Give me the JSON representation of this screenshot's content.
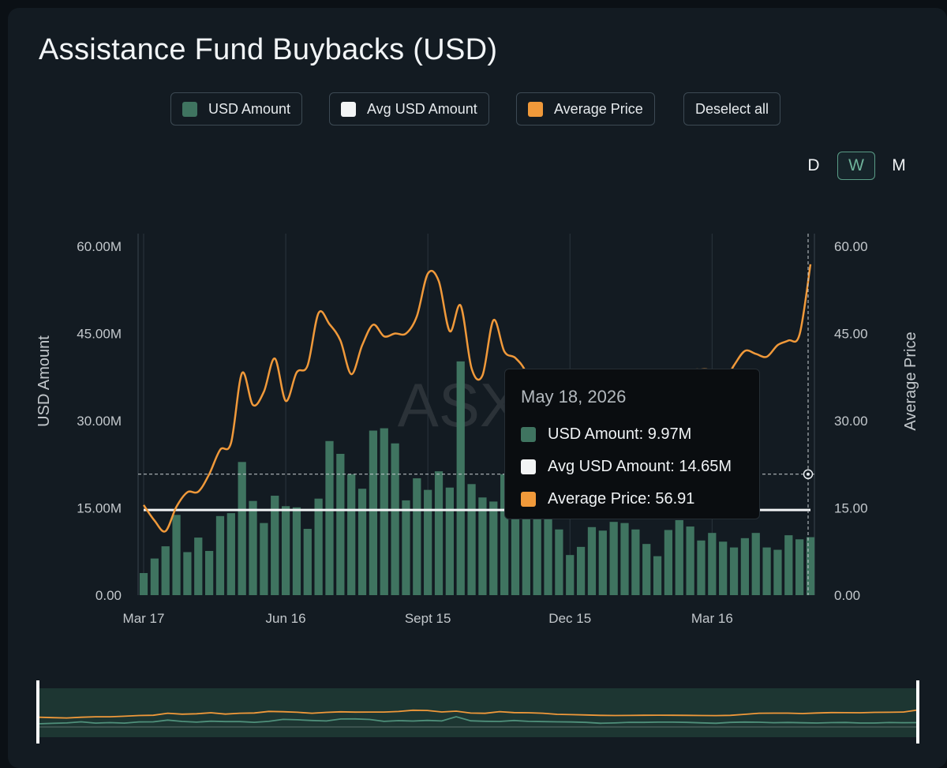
{
  "title": "Assistance Fund Buybacks (USD)",
  "legend": [
    {
      "label": "USD Amount",
      "color": "#3f7460"
    },
    {
      "label": "Avg USD Amount",
      "color": "#f2f4f5"
    },
    {
      "label": "Average Price",
      "color": "#f0993a"
    }
  ],
  "deselect_label": "Deselect all",
  "timeframes": [
    {
      "label": "D",
      "active": false
    },
    {
      "label": "W",
      "active": true
    },
    {
      "label": "M",
      "active": false
    }
  ],
  "watermark": "ASXN",
  "tooltip": {
    "date": "May 18, 2026",
    "rows": [
      {
        "label": "USD Amount: 9.97M",
        "color": "#3f7460"
      },
      {
        "label": "Avg USD Amount: 14.65M",
        "color": "#f2f4f5"
      },
      {
        "label": "Average Price: 56.91",
        "color": "#f0993a"
      }
    ]
  },
  "chart_data": {
    "type": "bar",
    "title": "Assistance Fund Buybacks (USD)",
    "ylabel": "USD Amount",
    "y2label": "Average Price",
    "ylim": [
      0,
      60
    ],
    "y2lim": [
      0,
      60
    ],
    "yticks": [
      "0.00",
      "15.00M",
      "30.00M",
      "45.00M",
      "60.00M"
    ],
    "y2ticks": [
      "0.00",
      "15.00",
      "30.00",
      "45.00",
      "60.00"
    ],
    "xticks": [
      {
        "label": "Mar 17",
        "index": 0
      },
      {
        "label": "Jun 16",
        "index": 13
      },
      {
        "label": "Sept 15",
        "index": 26
      },
      {
        "label": "Dec 15",
        "index": 39
      },
      {
        "label": "Mar 16",
        "index": 52
      }
    ],
    "avg_usd_amount": 14.65,
    "crosshair_price": 20.8,
    "series": [
      {
        "name": "USD Amount",
        "kind": "bar",
        "color": "#3f7460",
        "values": [
          3.8,
          6.3,
          8.4,
          13.8,
          7.4,
          9.9,
          7.6,
          13.6,
          14.1,
          22.9,
          16.2,
          12.4,
          17.1,
          15.3,
          15.1,
          11.4,
          16.6,
          26.5,
          24.3,
          20.8,
          18.3,
          28.3,
          28.7,
          26.1,
          16.3,
          20.1,
          18.1,
          21.3,
          18.5,
          40.2,
          19.1,
          16.8,
          16.1,
          20.8,
          16.4,
          15.2,
          14.2,
          13.1,
          11.3,
          6.9,
          8.3,
          11.7,
          11.1,
          12.6,
          12.4,
          11.3,
          8.8,
          6.7,
          11.2,
          12.9,
          11.8,
          9.4,
          10.7,
          9.2,
          8.2,
          9.8,
          10.7,
          8.2,
          7.8,
          10.3,
          9.6,
          9.97
        ]
      },
      {
        "name": "Average Price",
        "kind": "line",
        "color": "#f0993a",
        "values": [
          15.5,
          12.8,
          11.0,
          15.2,
          17.7,
          17.8,
          20.8,
          25.0,
          26.2,
          38.2,
          32.7,
          35.0,
          40.7,
          33.4,
          38.3,
          39.5,
          48.5,
          46.6,
          43.8,
          38.0,
          43.0,
          46.5,
          44.5,
          45.0,
          45.0,
          48.0,
          55.3,
          54.0,
          45.4,
          49.8,
          39.0,
          37.8,
          47.3,
          41.9,
          40.8,
          38.2,
          32.0,
          30.0,
          28.0,
          26.0,
          25.0,
          25.5,
          26.5,
          27.0,
          26.5,
          25.8,
          25.0,
          24.5,
          26.0,
          32.0,
          38.0,
          38.8,
          38.5,
          36.5,
          39.5,
          42.0,
          41.5,
          41.0,
          43.0,
          43.8,
          44.8,
          56.9
        ]
      }
    ],
    "legend_position": "top"
  }
}
